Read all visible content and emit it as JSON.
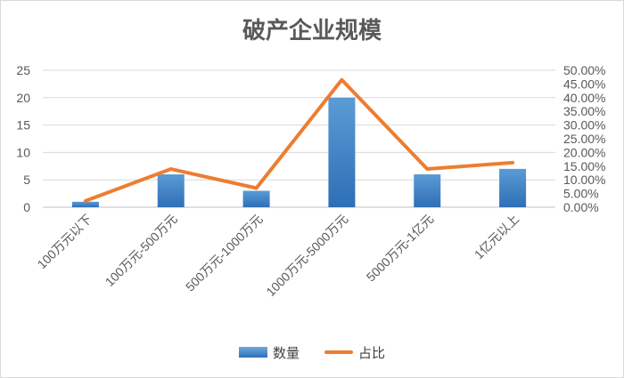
{
  "chart_data": {
    "type": "bar+line",
    "title": "破产企业规模",
    "categories": [
      "100万元以下",
      "100万元-500万元",
      "500万元-1000万元",
      "1000万元-5000万元",
      "5000万元-1亿元",
      "1亿元以上"
    ],
    "series": [
      {
        "name": "数量",
        "type": "bar",
        "axis": "left",
        "values": [
          1,
          6,
          3,
          20,
          6,
          7
        ],
        "color": "#2e75b6"
      },
      {
        "name": "占比",
        "type": "line",
        "axis": "right",
        "values": [
          0.0233,
          0.1395,
          0.0698,
          0.4651,
          0.1395,
          0.1628
        ],
        "color": "#ed7d31"
      }
    ],
    "y_left": {
      "ticks": [
        "0",
        "5",
        "10",
        "15",
        "20",
        "25"
      ],
      "min": 0,
      "max": 25
    },
    "y_right": {
      "ticks": [
        "0.00%",
        "5.00%",
        "10.00%",
        "15.00%",
        "20.00%",
        "25.00%",
        "30.00%",
        "35.00%",
        "40.00%",
        "45.00%",
        "50.00%"
      ],
      "min": 0,
      "max": 0.5
    },
    "grid": true,
    "legend_position": "bottom"
  }
}
